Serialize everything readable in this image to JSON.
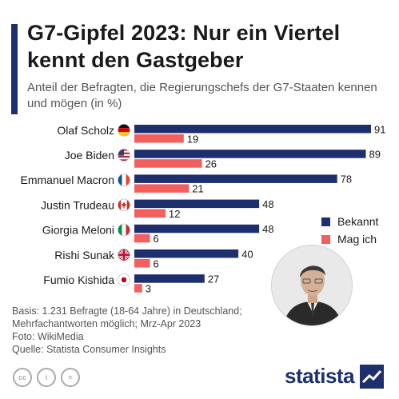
{
  "title": "G7-Gipfel 2023: Nur ein Viertel kennt den Gastgeber",
  "subtitle": "Anteil der Befragten, die Regierungschefs der G7-Staaten kennen und mögen (in %)",
  "legend": {
    "bekannt": "Bekannt",
    "mag": "Mag ich"
  },
  "colors": {
    "bekannt": "#1e2f6e",
    "mag": "#f25f5c",
    "accent": "#1e2f6e"
  },
  "chart_data": {
    "type": "bar",
    "orientation": "horizontal",
    "categories": [
      "Olaf Scholz",
      "Joe Biden",
      "Emmanuel Macron",
      "Justin Trudeau",
      "Giorgia Meloni",
      "Rishi Sunak",
      "Fumio Kishida"
    ],
    "flags": [
      "flag-germany-icon",
      "flag-usa-icon",
      "flag-france-icon",
      "flag-canada-icon",
      "flag-italy-icon",
      "flag-uk-icon",
      "flag-japan-icon"
    ],
    "series": [
      {
        "name": "Bekannt",
        "values": [
          91,
          89,
          78,
          48,
          48,
          40,
          27
        ]
      },
      {
        "name": "Mag ich",
        "values": [
          19,
          26,
          21,
          12,
          6,
          6,
          3
        ]
      }
    ],
    "xlim": [
      0,
      91
    ],
    "grid": false,
    "legend_position": "right"
  },
  "photo": {
    "icon": "person-portrait-icon"
  },
  "source": {
    "lines": [
      "Basis: 1.231 Befragte (18-64 Jahre) in Deutschland;",
      "Mehrfachantworten möglich; Mrz-Apr 2023",
      "Foto: WikiMedia",
      "Quelle: Statista Consumer Insights"
    ]
  },
  "footer": {
    "brand": "statista",
    "license_icons": [
      "cc",
      "i",
      "="
    ]
  }
}
